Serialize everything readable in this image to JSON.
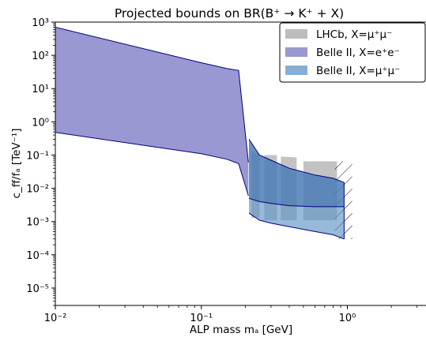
{
  "chart_data": {
    "type": "area",
    "title": "Projected bounds on BR(B⁺ → K⁺ + X)",
    "xlabel": "ALP mass mₐ [GeV]",
    "ylabel": "c_ff/fₐ [TeV⁻¹]",
    "x_scale": "log",
    "y_scale": "log",
    "xlim": [
      0.01,
      3.5
    ],
    "ylim": [
      3e-06,
      1000
    ],
    "x_ticks": [
      {
        "value": 0.01,
        "label": "10⁻²"
      },
      {
        "value": 0.1,
        "label": "10⁻¹"
      },
      {
        "value": 1,
        "label": "10⁰"
      }
    ],
    "y_ticks": [
      {
        "value": 1e-05,
        "label": "10⁻⁵"
      },
      {
        "value": 0.0001,
        "label": "10⁻⁴"
      },
      {
        "value": 0.001,
        "label": "10⁻³"
      },
      {
        "value": 0.01,
        "label": "10⁻²"
      },
      {
        "value": 0.1,
        "label": "10⁻¹"
      },
      {
        "value": 1,
        "label": "10⁰"
      },
      {
        "value": 10,
        "label": "10¹"
      },
      {
        "value": 100,
        "label": "10²"
      },
      {
        "value": 1000,
        "label": "10³"
      }
    ],
    "legend_position": "top-right",
    "series": [
      {
        "name": "LHCb, X=μ⁺μ⁻",
        "color": "#bdbdbd",
        "opacity": 0.9,
        "bands": [
          {
            "x": [
              0.22,
              0.25
            ],
            "upper": [
              0.12,
              0.11
            ],
            "lower": [
              0.0013,
              0.0013
            ]
          },
          {
            "x": [
              0.27,
              0.33
            ],
            "upper": [
              0.1,
              0.1
            ],
            "lower": [
              0.0011,
              0.0011
            ]
          },
          {
            "x": [
              0.35,
              0.45
            ],
            "upper": [
              0.09,
              0.085
            ],
            "lower": [
              0.0011,
              0.0011
            ]
          },
          {
            "x": [
              0.5,
              0.85
            ],
            "upper": [
              0.065,
              0.065
            ],
            "lower": [
              0.0011,
              0.0011
            ]
          }
        ]
      },
      {
        "name": "Belle II, X=e⁺e⁻",
        "color": "#9a98d2",
        "edge": "#000080",
        "x": [
          0.01,
          0.1,
          0.15,
          0.18,
          0.21
        ],
        "upper": [
          700,
          60,
          40,
          35,
          0.06
        ],
        "lower": [
          0.48,
          0.11,
          0.075,
          0.055,
          0.006
        ]
      },
      {
        "name": "Belle II, X=μ⁺μ⁻",
        "color": "#5f94c6",
        "edge": "#000080",
        "x": [
          0.212,
          0.25,
          0.3,
          0.4,
          0.6,
          0.8,
          0.95
        ],
        "upper": [
          0.3,
          0.1,
          0.07,
          0.04,
          0.025,
          0.02,
          0.015
        ],
        "lower": [
          0.0018,
          0.0011,
          0.0009,
          0.0007,
          0.0005,
          0.0004,
          0.0003
        ],
        "inner_line": [
          0.005,
          0.004,
          0.0035,
          0.003,
          0.0028,
          0.0028,
          0.0028
        ]
      }
    ],
    "annotations": [
      {
        "type": "hatched-region",
        "x": [
          0.82,
          1.08
        ],
        "y": [
          0.0003,
          0.065
        ]
      }
    ]
  }
}
